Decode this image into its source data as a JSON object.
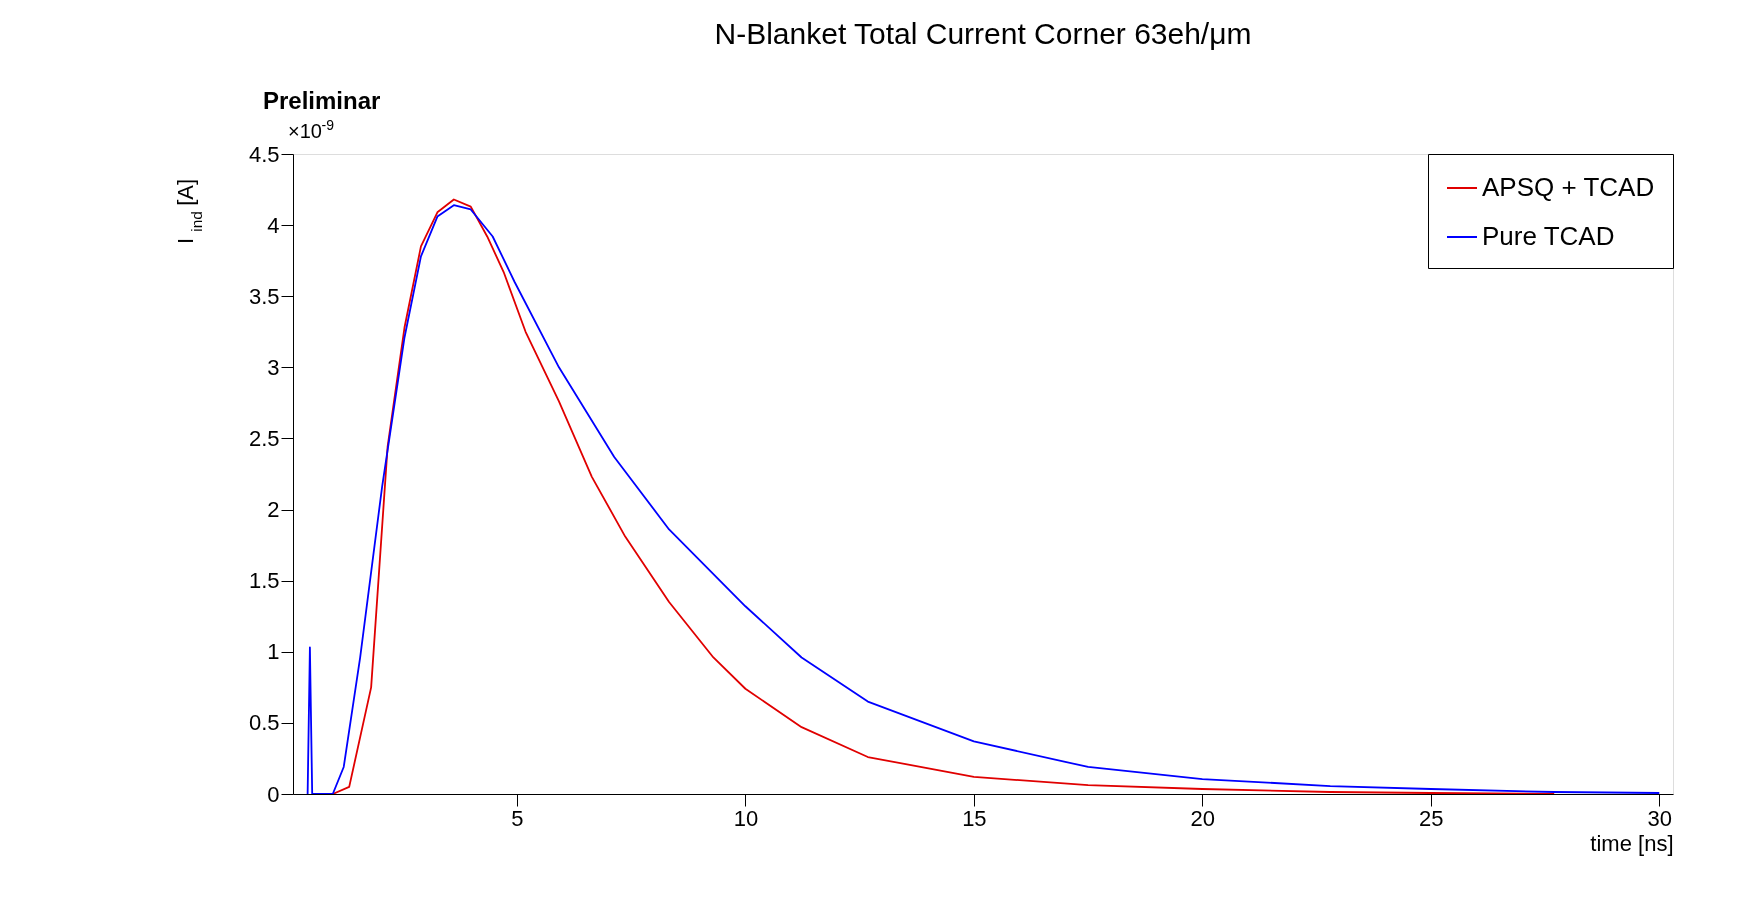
{
  "chart_data": {
    "type": "line",
    "title": "N-Blanket Total Current Corner 63eh/μm",
    "xlabel": "time [ns]",
    "ylabel": "I$_{ind}$ [A]",
    "annotations": [
      "Preliminar",
      "×10$^{-9}$"
    ],
    "xlim": [
      0.1,
      30.3
    ],
    "xticks": [
      5,
      10,
      15,
      20,
      25,
      30
    ],
    "ylim": [
      0,
      4.5
    ],
    "yticks": [
      0,
      0.5,
      1,
      1.5,
      2,
      2.5,
      3,
      3.5,
      4,
      4.5
    ],
    "grid": false,
    "legend": "top right",
    "marker": "none",
    "line_style": "solid",
    "series": [
      {
        "name": "APSQ + TCAD",
        "color": "#e00000",
        "x": [
          0.97,
          1.33,
          1.81,
          2.17,
          2.54,
          2.9,
          3.26,
          3.62,
          3.99,
          4.35,
          4.71,
          5.19,
          5.92,
          6.64,
          7.37,
          8.33,
          9.3,
          10,
          11.23,
          12.68,
          15,
          17.5,
          20,
          22.8,
          25,
          27.7
        ],
        "values": [
          0,
          0.05,
          0.75,
          2.44,
          3.28,
          3.85,
          4.09,
          4.18,
          4.13,
          3.92,
          3.67,
          3.25,
          2.76,
          2.23,
          1.81,
          1.35,
          0.96,
          0.74,
          0.47,
          0.26,
          0.12,
          0.063,
          0.035,
          0.014,
          0.007,
          0
        ]
      },
      {
        "name": "Pure TCAD",
        "color": "#0000ff",
        "x": [
          0.42,
          0.47,
          0.52,
          0.97,
          1.21,
          1.57,
          2.05,
          2.54,
          2.9,
          3.26,
          3.62,
          3.99,
          4.47,
          4.95,
          5.92,
          7.13,
          8.33,
          10,
          11.23,
          12.68,
          15,
          17.5,
          20,
          22.8,
          25,
          27.7,
          30
        ],
        "values": [
          0,
          1.03,
          0,
          0,
          0.19,
          0.96,
          2.16,
          3.21,
          3.78,
          4.06,
          4.14,
          4.11,
          3.92,
          3.6,
          3.0,
          2.37,
          1.86,
          1.32,
          0.96,
          0.65,
          0.37,
          0.19,
          0.105,
          0.056,
          0.035,
          0.014,
          0.007
        ]
      }
    ]
  }
}
